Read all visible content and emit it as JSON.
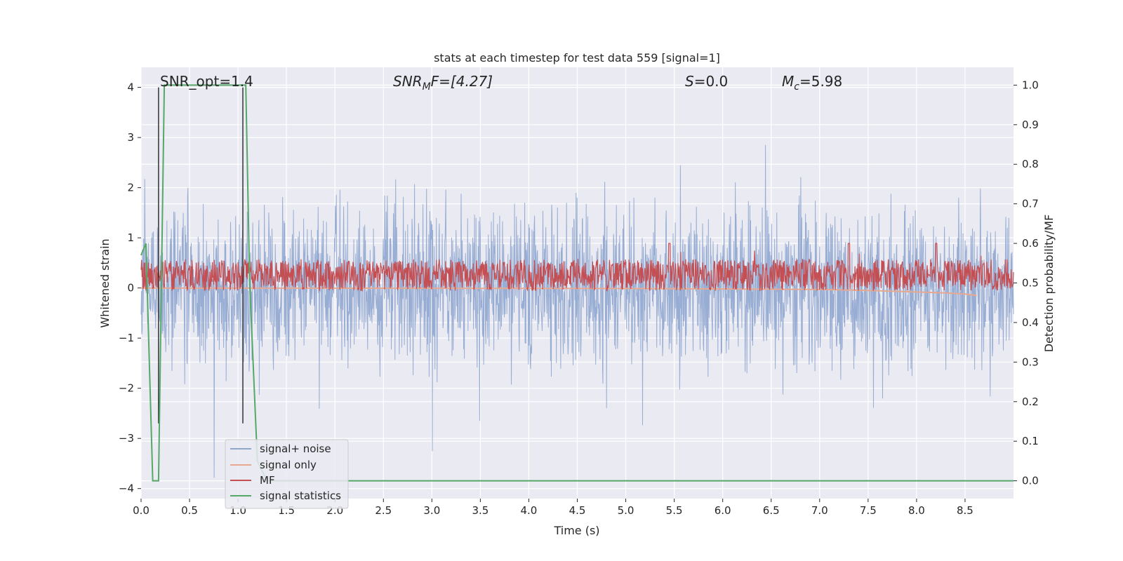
{
  "chart_data": {
    "type": "line",
    "title": "stats at each timestep for test data 559 [signal=1]",
    "xlabel": "Time (s)",
    "ylabel": "Whitened strain",
    "ylabel_right": "Detection probability/MF",
    "xlim": [
      0.0,
      9.0
    ],
    "ylim": [
      -4.2,
      4.4
    ],
    "ylim_right": [
      -0.045,
      1.045
    ],
    "x_ticks": [
      "0.0",
      "0.5",
      "1.0",
      "1.5",
      "2.0",
      "2.5",
      "3.0",
      "3.5",
      "4.0",
      "4.5",
      "5.0",
      "5.5",
      "6.0",
      "6.5",
      "7.0",
      "7.5",
      "8.0",
      "8.5"
    ],
    "y_ticks": [
      "4",
      "3",
      "2",
      "1",
      "0",
      "−1",
      "−2",
      "−3",
      "−4"
    ],
    "y_ticks_right": [
      "1.0",
      "0.9",
      "0.8",
      "0.7",
      "0.6",
      "0.5",
      "0.4",
      "0.3",
      "0.2",
      "0.1",
      "0.0"
    ],
    "grid": true,
    "legend_position": "lower-left",
    "annotations": {
      "snr_opt": "SNR_opt=1.4",
      "snr_mf_prefix": "SNR",
      "snr_mf_sub": "M",
      "snr_mf_suffix": "F=[4.27]",
      "s_prefix": "S",
      "s_suffix": "=0.0",
      "mc_prefix": "M",
      "mc_sub": "c",
      "mc_suffix": "=5.98"
    },
    "series": [
      {
        "name": "signal+ noise",
        "color": "#8fa6cf",
        "axis": "left",
        "description_values": "whitened strain noise, amplitude mostly within ±3, peaks to ±4",
        "envelope_abs_max": 4.0
      },
      {
        "name": "signal only",
        "color": "#e8a88f",
        "axis": "left",
        "x": [
          0.0,
          5.0,
          7.0,
          7.5,
          8.0,
          8.3,
          8.5,
          8.62
        ],
        "y": [
          0.0,
          -0.01,
          -0.03,
          -0.05,
          -0.08,
          -0.1,
          -0.12,
          -0.15
        ]
      },
      {
        "name": "MF",
        "color": "#c44e52",
        "axis": "right",
        "band_mean": 0.52,
        "band_width": 0.04,
        "peak_values": [
          {
            "x": 5.45,
            "y": 0.6
          },
          {
            "x": 7.3,
            "y": 0.6
          },
          {
            "x": 8.2,
            "y": 0.6
          }
        ]
      },
      {
        "name": "signal statistics",
        "color": "#55a868",
        "axis": "right",
        "x": [
          0.0,
          0.05,
          0.12,
          0.18,
          0.24,
          0.28,
          1.0,
          1.08,
          1.12,
          1.2,
          1.3,
          9.0
        ],
        "y": [
          0.57,
          0.6,
          0.0,
          0.0,
          1.0,
          1.0,
          1.0,
          1.0,
          0.5,
          0.05,
          0.0,
          0.0
        ]
      }
    ],
    "vertical_markers": [
      {
        "x": 0.18,
        "color": "#333333"
      },
      {
        "x": 1.05,
        "color": "#333333"
      }
    ]
  }
}
